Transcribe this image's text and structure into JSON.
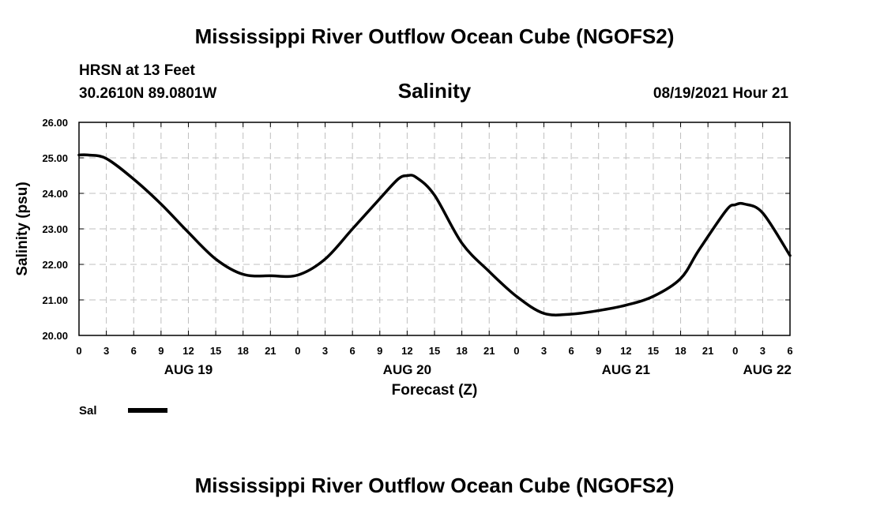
{
  "chart_data": {
    "type": "line",
    "title": "Mississippi River Outflow Ocean Cube (NGOFS2)",
    "footer_title": "Mississippi River Outflow Ocean Cube (NGOFS2)",
    "station": "HRSN at 13 Feet",
    "location": "30.2610N  89.0801W",
    "subtitle": "Salinity",
    "timestamp": "08/19/2021 Hour 21",
    "xlabel": "Forecast (Z)",
    "ylabel": "Salinity (psu)",
    "ylim": [
      20,
      26
    ],
    "xlim": [
      0,
      78
    ],
    "grid": true,
    "legend_position": "bottom-left",
    "y_ticks": [
      "20.00",
      "21.00",
      "22.00",
      "23.00",
      "24.00",
      "25.00",
      "26.00"
    ],
    "x_ticks": [
      {
        "h": 0,
        "label": "0"
      },
      {
        "h": 3,
        "label": "3"
      },
      {
        "h": 6,
        "label": "6"
      },
      {
        "h": 9,
        "label": "9"
      },
      {
        "h": 12,
        "label": "12"
      },
      {
        "h": 15,
        "label": "15"
      },
      {
        "h": 18,
        "label": "18"
      },
      {
        "h": 21,
        "label": "21"
      },
      {
        "h": 24,
        "label": "0"
      },
      {
        "h": 27,
        "label": "3"
      },
      {
        "h": 30,
        "label": "6"
      },
      {
        "h": 33,
        "label": "9"
      },
      {
        "h": 36,
        "label": "12"
      },
      {
        "h": 39,
        "label": "15"
      },
      {
        "h": 42,
        "label": "18"
      },
      {
        "h": 45,
        "label": "21"
      },
      {
        "h": 48,
        "label": "0"
      },
      {
        "h": 51,
        "label": "3"
      },
      {
        "h": 54,
        "label": "6"
      },
      {
        "h": 57,
        "label": "9"
      },
      {
        "h": 60,
        "label": "12"
      },
      {
        "h": 63,
        "label": "15"
      },
      {
        "h": 66,
        "label": "18"
      },
      {
        "h": 69,
        "label": "21"
      },
      {
        "h": 72,
        "label": "0"
      },
      {
        "h": 75,
        "label": "3"
      },
      {
        "h": 78,
        "label": "6"
      }
    ],
    "day_labels": [
      {
        "h": 12,
        "label": "AUG 19"
      },
      {
        "h": 36,
        "label": "AUG 20"
      },
      {
        "h": 60,
        "label": "AUG 21"
      },
      {
        "h": 75.5,
        "label": "AUG 22"
      }
    ],
    "series": [
      {
        "name": "Sal",
        "color": "#000000",
        "x": [
          0,
          1,
          3,
          6,
          9,
          12,
          15,
          18,
          21,
          24,
          27,
          30,
          33,
          35,
          36,
          37,
          39,
          42,
          45,
          48,
          51,
          54,
          57,
          60,
          63,
          66,
          68,
          71,
          72,
          73,
          75,
          78
        ],
        "values": [
          25.08,
          25.08,
          24.98,
          24.4,
          23.7,
          22.9,
          22.15,
          21.72,
          21.68,
          21.7,
          22.15,
          23.0,
          23.85,
          24.4,
          24.5,
          24.45,
          23.95,
          22.6,
          21.8,
          21.1,
          20.62,
          20.6,
          20.7,
          20.85,
          21.1,
          21.6,
          22.4,
          23.52,
          23.68,
          23.7,
          23.45,
          22.25
        ]
      }
    ]
  }
}
